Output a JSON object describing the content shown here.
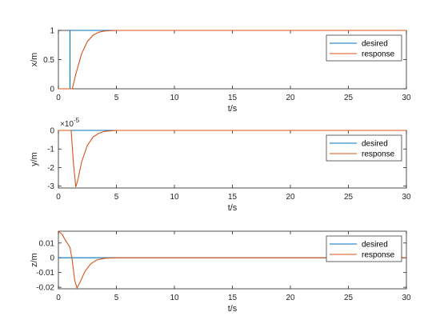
{
  "colors": {
    "desired": "#0072BD",
    "response": "#D95319",
    "axis": "#262626",
    "background": "#ffffff"
  },
  "chart_data": [
    {
      "type": "line",
      "xlabel": "t/s",
      "ylabel": "x/m",
      "xlim": [
        0,
        30
      ],
      "ylim": [
        0,
        1
      ],
      "xticks": [
        "0",
        "5",
        "10",
        "15",
        "20",
        "25",
        "30"
      ],
      "yticks": [
        "0",
        "0.5",
        "1"
      ],
      "ytick_values": [
        0,
        0.5,
        1
      ],
      "exponent": "",
      "legend": "top-right",
      "grid": false,
      "series": [
        {
          "name": "desired",
          "x": [
            0,
            1.0,
            1.0,
            30
          ],
          "y": [
            0,
            0,
            1,
            1
          ]
        },
        {
          "name": "response",
          "x": [
            0,
            1.2,
            1.5,
            2.0,
            2.5,
            3.0,
            3.5,
            4.0,
            5.0,
            30
          ],
          "y": [
            0,
            0,
            0.25,
            0.6,
            0.81,
            0.92,
            0.97,
            0.99,
            1,
            1
          ]
        }
      ]
    },
    {
      "type": "line",
      "xlabel": "t/s",
      "ylabel": "y/m",
      "xlim": [
        0,
        30
      ],
      "ylim": [
        -3.1,
        0
      ],
      "xticks": [
        "0",
        "5",
        "10",
        "15",
        "20",
        "25",
        "30"
      ],
      "yticks": [
        "0",
        "-1",
        "-2",
        "-3"
      ],
      "ytick_values": [
        0,
        -1,
        -2,
        -3
      ],
      "exponent": "×10",
      "exponent_power": "-5",
      "legend": "top-right",
      "grid": false,
      "series": [
        {
          "name": "desired",
          "x": [
            0,
            30
          ],
          "y": [
            0,
            0
          ]
        },
        {
          "name": "response",
          "x": [
            0,
            1.1,
            1.3,
            1.5,
            1.7,
            2.0,
            2.5,
            3.0,
            3.5,
            4.0,
            5.0,
            30
          ],
          "y": [
            0,
            0,
            -1.8,
            -3.05,
            -2.6,
            -1.7,
            -0.8,
            -0.35,
            -0.15,
            -0.05,
            0,
            0
          ]
        }
      ]
    },
    {
      "type": "line",
      "xlabel": "t/s",
      "ylabel": "z/m",
      "xlim": [
        0,
        30
      ],
      "ylim": [
        -0.021,
        0.018
      ],
      "xticks": [
        "0",
        "5",
        "10",
        "15",
        "20",
        "25",
        "30"
      ],
      "yticks": [
        "0.01",
        "0",
        "-0.01",
        "-0.02"
      ],
      "ytick_values": [
        0.01,
        0,
        -0.01,
        -0.02
      ],
      "exponent": "",
      "legend": "top-right",
      "grid": false,
      "series": [
        {
          "name": "desired",
          "x": [
            0,
            30
          ],
          "y": [
            0,
            0
          ]
        },
        {
          "name": "response",
          "x": [
            0,
            0.3,
            0.6,
            1.0,
            1.2,
            1.4,
            1.6,
            1.9,
            2.3,
            2.8,
            3.3,
            4.0,
            5.0,
            30
          ],
          "y": [
            0.018,
            0.016,
            0.012,
            0.007,
            -0.002,
            -0.015,
            -0.0205,
            -0.016,
            -0.009,
            -0.004,
            -0.0015,
            -0.0003,
            0,
            0
          ]
        }
      ]
    }
  ]
}
